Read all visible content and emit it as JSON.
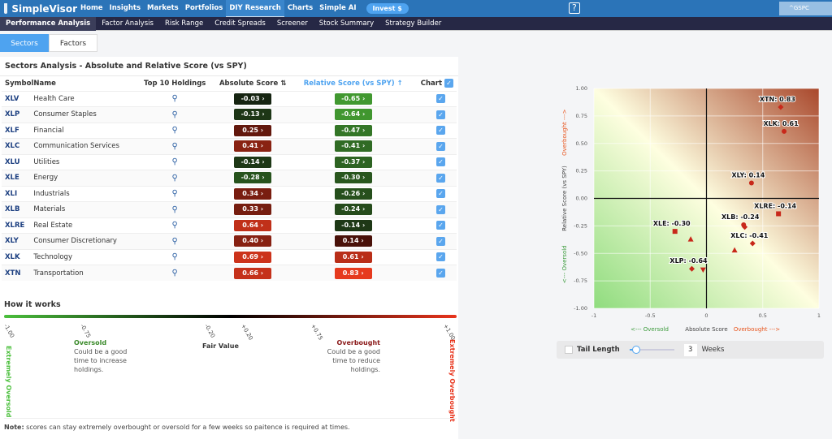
{
  "app": {
    "name": "SimpleVisor",
    "ticker": "^GSPC",
    "help_icon": "video-help-icon"
  },
  "nav": [
    "Home",
    "Insights",
    "Markets",
    "Portfolios",
    "DIY Research",
    "Charts",
    "Simple AI"
  ],
  "nav_active": "DIY Research",
  "invest": "Invest $",
  "subnav": [
    "Performance Analysis",
    "Factor Analysis",
    "Risk Range",
    "Credit Spreads",
    "Screener",
    "Stock Summary",
    "Strategy Builder"
  ],
  "tabs": [
    "Sectors",
    "Factors"
  ],
  "title": "Sectors Analysis - Absolute and Relative Score (vs SPY)",
  "columns": {
    "symbol": "Symbol",
    "name": "Name",
    "holdings": "Top 10 Holdings",
    "abs": "Absolute Score",
    "rel": "Relative Score (vs SPY)",
    "chart": "Chart"
  },
  "rows": [
    {
      "sym": "XLV",
      "name": "Health Care",
      "abs": "-0.03",
      "rel": "-0.65"
    },
    {
      "sym": "XLP",
      "name": "Consumer Staples",
      "abs": "-0.13",
      "rel": "-0.64"
    },
    {
      "sym": "XLF",
      "name": "Financial",
      "abs": "0.25",
      "rel": "-0.47"
    },
    {
      "sym": "XLC",
      "name": "Communication Services",
      "abs": "0.41",
      "rel": "-0.41"
    },
    {
      "sym": "XLU",
      "name": "Utilities",
      "abs": "-0.14",
      "rel": "-0.37"
    },
    {
      "sym": "XLE",
      "name": "Energy",
      "abs": "-0.28",
      "rel": "-0.30"
    },
    {
      "sym": "XLI",
      "name": "Industrials",
      "abs": "0.34",
      "rel": "-0.26"
    },
    {
      "sym": "XLB",
      "name": "Materials",
      "abs": "0.33",
      "rel": "-0.24"
    },
    {
      "sym": "XLRE",
      "name": "Real Estate",
      "abs": "0.64",
      "rel": "-0.14"
    },
    {
      "sym": "XLY",
      "name": "Consumer Discretionary",
      "abs": "0.40",
      "rel": "0.14"
    },
    {
      "sym": "XLK",
      "name": "Technology",
      "abs": "0.69",
      "rel": "0.61"
    },
    {
      "sym": "XTN",
      "name": "Transportation",
      "abs": "0.66",
      "rel": "0.83"
    }
  ],
  "how": {
    "title": "How it works",
    "ticks": [
      "-1.00",
      "-0.75",
      "-0.20",
      "+0.20",
      "+0.75",
      "+1.00"
    ],
    "ext_oversold": "Extremely Oversold",
    "ext_overbought": "Extremely Overbought",
    "oversold": "Oversold",
    "oversold_desc": "Could be a good time to increase holdings.",
    "fair": "Fair Value",
    "overbought": "Overbought",
    "overbought_desc": "Could be a good time to reduce holdings.",
    "note_label": "Note:",
    "note": " scores can stay extremely overbought or oversold for a few weeks so paitence is required at times."
  },
  "colors": {
    "green": "#4bbf3c",
    "red": "#e8341c",
    "marker": "#c8281a",
    "accent": "#4ea3f0"
  },
  "chart_data": {
    "type": "scatter",
    "xlabel": "Absolute Score",
    "xlabel_left": "<--- Oversold",
    "xlabel_right": "Overbought --->",
    "ylabel": "Relative Score (vs SPY)",
    "ylabel_top": "Overbought --->",
    "ylabel_bottom": "<--- Oversold",
    "xlim": [
      -1,
      1
    ],
    "ylim": [
      -1,
      1
    ],
    "xticks": [
      "-1",
      "-0.5",
      "0",
      "0.5",
      "1"
    ],
    "yticks": [
      "1.00",
      "0.75",
      "0.50",
      "0.25",
      "0.00",
      "-0.25",
      "-0.50",
      "-0.75",
      "-1.00"
    ],
    "grid": true,
    "points": [
      {
        "sym": "XTN",
        "x": 0.66,
        "y": 0.83,
        "marker": "diamond",
        "label": "XTN: 0.83"
      },
      {
        "sym": "XLK",
        "x": 0.69,
        "y": 0.61,
        "marker": "circle",
        "label": "XLK: 0.61"
      },
      {
        "sym": "XLY",
        "x": 0.4,
        "y": 0.14,
        "marker": "circle",
        "label": "XLY: 0.14"
      },
      {
        "sym": "XLRE",
        "x": 0.64,
        "y": -0.14,
        "marker": "square",
        "label": "XLRE: -0.14"
      },
      {
        "sym": "XLB",
        "x": 0.33,
        "y": -0.24,
        "marker": "circle",
        "label": "XLB: -0.24"
      },
      {
        "sym": "XLI",
        "x": 0.34,
        "y": -0.26,
        "marker": "diamond",
        "label": ""
      },
      {
        "sym": "XLC",
        "x": 0.41,
        "y": -0.41,
        "marker": "diamond",
        "label": "XLC: -0.41"
      },
      {
        "sym": "XLE",
        "x": -0.28,
        "y": -0.3,
        "marker": "square",
        "label": "XLE: -0.30"
      },
      {
        "sym": "XLU",
        "x": -0.14,
        "y": -0.37,
        "marker": "triangle",
        "label": ""
      },
      {
        "sym": "XLF",
        "x": 0.25,
        "y": -0.47,
        "marker": "triangle",
        "label": ""
      },
      {
        "sym": "XLP",
        "x": -0.13,
        "y": -0.64,
        "marker": "diamond",
        "label": "XLP: -0.64"
      },
      {
        "sym": "XLV",
        "x": -0.03,
        "y": -0.65,
        "marker": "triangle-down",
        "label": ""
      }
    ]
  },
  "tail": {
    "label": "Tail Length",
    "weeks": "3",
    "unit": "Weeks",
    "slider_fraction": 0.05
  }
}
